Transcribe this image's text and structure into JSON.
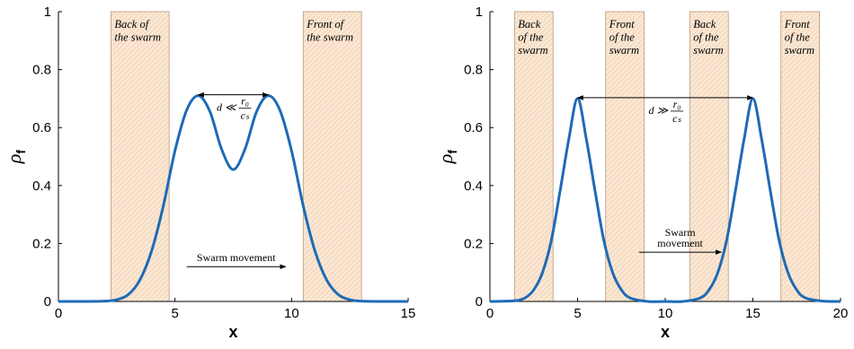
{
  "colors": {
    "curve": "#1f6ab6",
    "zone_fill": "#fbe7d3",
    "zone_hatch": "#eac8a6",
    "zone_edge": "#b89b7d",
    "axis": "#000000"
  },
  "chart_data": [
    {
      "type": "line",
      "title": "",
      "xlabel": "x",
      "ylabel": {
        "main": "ρ",
        "sub": "f"
      },
      "xlim": [
        0,
        15
      ],
      "ylim": [
        0,
        1
      ],
      "xticks": [
        0,
        5,
        10,
        15
      ],
      "yticks": [
        0,
        0.2,
        0.4,
        0.6,
        0.8,
        1
      ],
      "ytick_labels": [
        "0",
        "0.2",
        "0.4",
        "0.6",
        "0.8",
        "1"
      ],
      "grid": false,
      "series": [
        {
          "x": [
            0,
            1,
            2,
            2.5,
            3,
            3.5,
            4,
            4.5,
            5,
            5.5,
            6,
            6.5,
            7,
            7.5,
            8,
            8.5,
            9,
            9.5,
            10,
            10.5,
            11,
            11.5,
            12,
            12.5,
            13,
            14,
            15
          ],
          "y": [
            0,
            0,
            0.001,
            0.006,
            0.024,
            0.075,
            0.175,
            0.33,
            0.52,
            0.66,
            0.71,
            0.655,
            0.525,
            0.455,
            0.525,
            0.655,
            0.71,
            0.66,
            0.52,
            0.33,
            0.175,
            0.075,
            0.024,
            0.006,
            0.001,
            0,
            0
          ]
        }
      ],
      "zones": [
        {
          "x0": 2.25,
          "x1": 4.75,
          "label_lines": [
            "Back of",
            "the swarm"
          ]
        },
        {
          "x0": 10.5,
          "x1": 13.0,
          "label_lines": [
            "Front of",
            "the swarm"
          ]
        }
      ],
      "distance_annotation": {
        "x0": 6.0,
        "x1": 9.0,
        "y": 0.71,
        "prefix": "d ≪",
        "numerator": "r₀",
        "denominator": "cₛ"
      },
      "movement_annotation": {
        "x0": 5.5,
        "x1": 9.75,
        "y": 0.12,
        "text_lines": [
          "Swarm movement"
        ]
      }
    },
    {
      "type": "line",
      "title": "",
      "xlabel": "x",
      "ylabel": {
        "main": "ρ",
        "sub": "f"
      },
      "xlim": [
        0,
        20
      ],
      "ylim": [
        0,
        1
      ],
      "xticks": [
        0,
        5,
        10,
        15,
        20
      ],
      "yticks": [
        0,
        0.2,
        0.4,
        0.6,
        0.8,
        1
      ],
      "ytick_labels": [
        "0",
        "0.2",
        "0.4",
        "0.6",
        "0.8",
        "1"
      ],
      "grid": false,
      "series": [
        {
          "x": [
            0,
            1,
            1.5,
            2,
            2.5,
            3,
            3.5,
            4,
            4.5,
            5,
            5.5,
            6,
            6.5,
            7,
            7.5,
            8,
            9,
            10,
            11,
            12,
            12.5,
            13,
            13.5,
            14,
            14.5,
            15,
            15.5,
            16,
            16.5,
            17,
            17.5,
            18,
            19,
            20
          ],
          "y": [
            0,
            0.001,
            0.003,
            0.012,
            0.04,
            0.1,
            0.21,
            0.38,
            0.56,
            0.7,
            0.56,
            0.38,
            0.21,
            0.1,
            0.04,
            0.012,
            0,
            0,
            0,
            0.012,
            0.04,
            0.1,
            0.21,
            0.38,
            0.56,
            0.7,
            0.56,
            0.38,
            0.21,
            0.1,
            0.04,
            0.012,
            0.001,
            0
          ]
        }
      ],
      "zones": [
        {
          "x0": 1.4,
          "x1": 3.6,
          "label_lines": [
            "Back",
            "of the",
            "swarm"
          ]
        },
        {
          "x0": 6.6,
          "x1": 8.8,
          "label_lines": [
            "Front",
            "of the",
            "swarm"
          ]
        },
        {
          "x0": 11.4,
          "x1": 13.6,
          "label_lines": [
            "Back",
            "of the",
            "swarm"
          ]
        },
        {
          "x0": 16.6,
          "x1": 18.8,
          "label_lines": [
            "Front",
            "of the",
            "swarm"
          ]
        }
      ],
      "distance_annotation": {
        "x0": 5.0,
        "x1": 15.0,
        "y": 0.7,
        "prefix": "d ≫",
        "numerator": "r₀",
        "denominator": "cₛ"
      },
      "movement_annotation": {
        "x0": 8.5,
        "x1": 13.2,
        "y": 0.17,
        "text_lines": [
          "Swarm",
          "movement"
        ]
      }
    }
  ]
}
